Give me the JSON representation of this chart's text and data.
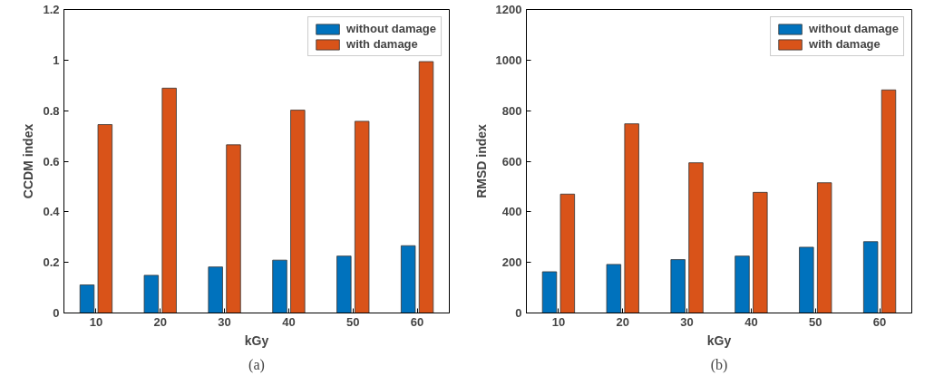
{
  "chart_data": [
    {
      "type": "bar",
      "xlabel": "kGy",
      "ylabel": "CCDM index",
      "categories": [
        "10",
        "20",
        "30",
        "40",
        "50",
        "60"
      ],
      "ylim": [
        0,
        1.2
      ],
      "yticks": [
        0,
        0.2,
        0.4,
        0.6,
        0.8,
        1,
        1.2
      ],
      "legend": "top right",
      "grid": false,
      "annotations": [
        "(a)"
      ],
      "series": [
        {
          "name": "without damage",
          "color": "#0072bd",
          "values": [
            0.111,
            0.149,
            0.182,
            0.209,
            0.225,
            0.266
          ]
        },
        {
          "name": "with damage",
          "color": "#d95319",
          "values": [
            0.745,
            0.889,
            0.665,
            0.802,
            0.758,
            0.994
          ]
        }
      ]
    },
    {
      "type": "bar",
      "xlabel": "kGy",
      "ylabel": "RMSD index",
      "categories": [
        "10",
        "20",
        "30",
        "40",
        "50",
        "60"
      ],
      "ylim": [
        0,
        1200
      ],
      "yticks": [
        0,
        200,
        400,
        600,
        800,
        1000,
        1200
      ],
      "legend": "top right",
      "grid": false,
      "annotations": [
        "(b)"
      ],
      "series": [
        {
          "name": "without damage",
          "color": "#0072bd",
          "values": [
            163,
            192,
            211,
            225,
            260,
            282
          ]
        },
        {
          "name": "with damage",
          "color": "#d95319",
          "values": [
            470,
            748,
            594,
            477,
            515,
            882
          ]
        }
      ]
    }
  ]
}
